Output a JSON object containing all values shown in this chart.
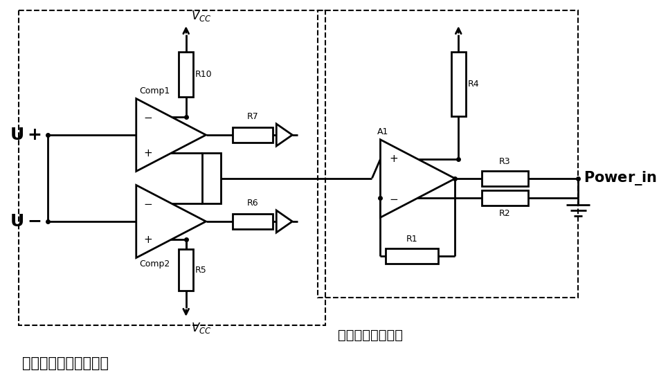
{
  "fig_width": 9.65,
  "fig_height": 5.52,
  "bg_color": "#ffffff",
  "line_color": "#000000",
  "lw": 2.0,
  "box1_label": "电压正负半周判断电路",
  "box2_label": "电源电压检测电路",
  "label_Comp1": "Comp1",
  "label_Comp2": "Comp2",
  "label_A1": "A1",
  "label_R1": "R1",
  "label_R2": "R2",
  "label_R3": "R3",
  "label_R4": "R4",
  "label_R5": "R5",
  "label_R6": "R6",
  "label_R7": "R7",
  "label_R10": "R10",
  "label_Power_in": "Power_in"
}
